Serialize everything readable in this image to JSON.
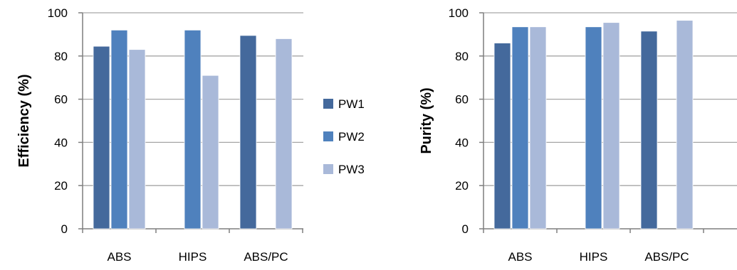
{
  "colors": {
    "PW1": "#44699c",
    "PW2": "#4f81bd",
    "PW3": "#a9b9d9",
    "grid": "#a6a6a6",
    "axis": "#7f7f7f"
  },
  "legend": {
    "items": [
      "PW1",
      "PW2",
      "PW3"
    ]
  },
  "chart_data": [
    {
      "type": "bar",
      "categories": [
        "ABS",
        "HIPS",
        "ABS/PC"
      ],
      "series": [
        {
          "name": "PW1",
          "values": [
            84.5,
            null,
            89.5
          ]
        },
        {
          "name": "PW2",
          "values": [
            92,
            92,
            null
          ]
        },
        {
          "name": "PW3",
          "values": [
            83,
            71,
            88
          ]
        }
      ],
      "ylabel": "Efficiency (%)",
      "ylim": [
        0,
        100
      ],
      "yticks": [
        0,
        20,
        40,
        60,
        80,
        100
      ],
      "grid": true,
      "legend": "right"
    },
    {
      "type": "bar",
      "categories": [
        "ABS",
        "HIPS",
        "ABS/PC"
      ],
      "series": [
        {
          "name": "PW1",
          "values": [
            86,
            null,
            91.5
          ]
        },
        {
          "name": "PW2",
          "values": [
            93.5,
            93.5,
            null
          ]
        },
        {
          "name": "PW3",
          "values": [
            93.5,
            95.5,
            96.5
          ]
        }
      ],
      "ylabel": "Purity (%)",
      "ylim": [
        0,
        100
      ],
      "yticks": [
        0,
        20,
        40,
        60,
        80,
        100
      ],
      "grid": true,
      "legend": "none"
    }
  ]
}
